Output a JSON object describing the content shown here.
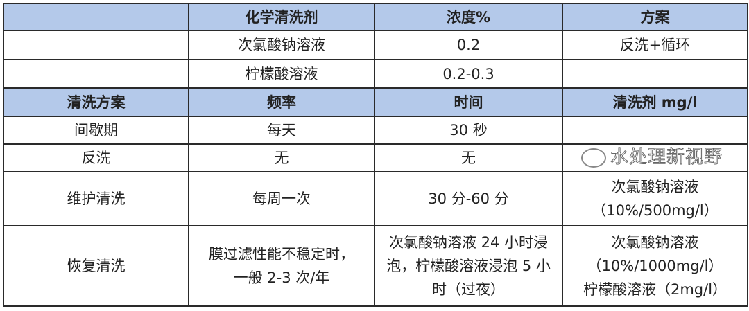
{
  "chemical_table": {
    "headers": [
      "",
      "化学清洗剂",
      "浓度%",
      "方案"
    ],
    "rows": [
      [
        "",
        "次氯酸钠溶液",
        "0.2",
        "反洗+循环"
      ],
      [
        "",
        "柠檬酸溶液",
        "0.2-0.3",
        ""
      ]
    ]
  },
  "cleaning_table": {
    "headers": [
      "清洗方案",
      "频率",
      "时间",
      "清洗剂 mg/l"
    ],
    "rows": [
      [
        "间歇期",
        "每天",
        "30 秒",
        ""
      ],
      [
        "反洗",
        "无",
        "无",
        ""
      ],
      [
        "维护清洗",
        "每周一次",
        "30 分-60 分",
        "次氯酸钠溶液\n（10%/500mg/l）"
      ],
      [
        "恢复清洗",
        "膜过滤性能不稳定时，一般 2-3 次/年",
        "次氯酸钠溶液 24 小时浸泡，柠檬酸溶液浸泡 5 小时（过夜）",
        "次氯酸钠溶液\n（10%/1000mg/l）\n柠檬酸溶液（2mg/l）"
      ]
    ]
  },
  "colors": {
    "header_bg": "#b4c9ea",
    "border": "#2a2a2a"
  },
  "watermark": "水处理新视野"
}
